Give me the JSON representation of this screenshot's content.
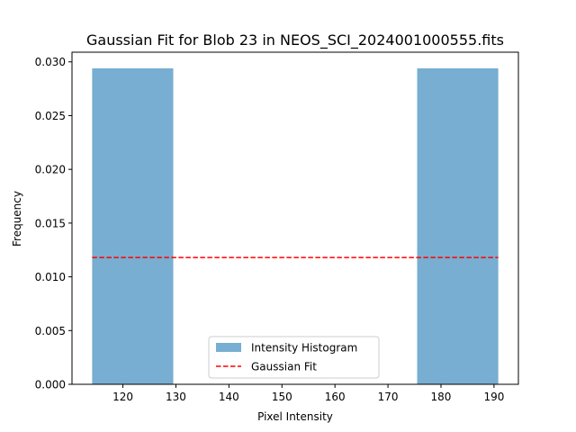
{
  "chart_data": {
    "type": "bar",
    "title": "Gaussian Fit for Blob 23 in NEOS_SCI_2024001000555.fits",
    "xlabel": "Pixel Intensity",
    "ylabel": "Frequency",
    "xlim": [
      110.4,
      194.6
    ],
    "ylim": [
      0,
      0.0309
    ],
    "x_ticks": [
      120,
      130,
      140,
      150,
      160,
      170,
      180,
      190
    ],
    "y_ticks": [
      0.0,
      0.005,
      0.01,
      0.015,
      0.02,
      0.025,
      0.03
    ],
    "y_tick_labels": [
      "0.000",
      "0.005",
      "0.010",
      "0.015",
      "0.020",
      "0.025",
      "0.030"
    ],
    "x_tick_labels": [
      "120",
      "130",
      "140",
      "150",
      "160",
      "170",
      "180",
      "190"
    ],
    "histogram": {
      "name": "Intensity Histogram",
      "color": "#77aed1",
      "bins": [
        {
          "x0": 114.2,
          "x1": 129.5,
          "value": 0.0294
        },
        {
          "x0": 175.5,
          "x1": 190.8,
          "value": 0.0294
        }
      ]
    },
    "fit": {
      "name": "Gaussian Fit",
      "color": "#ff0000",
      "style": "dashed",
      "x": [
        114.2,
        190.8
      ],
      "y": [
        0.0118,
        0.0118
      ]
    },
    "legend_position": "lower center",
    "grid": false
  }
}
